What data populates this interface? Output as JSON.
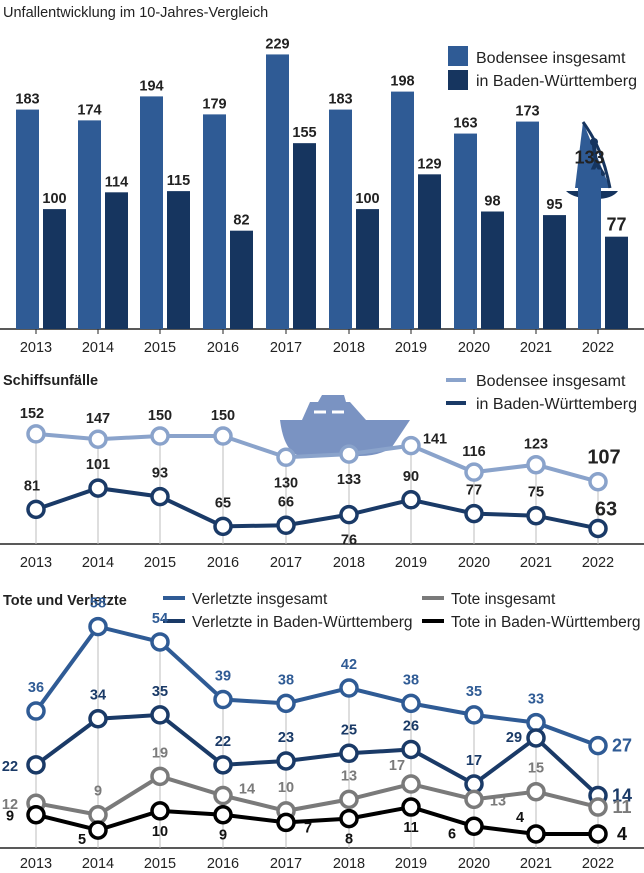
{
  "years": [
    "2013",
    "2014",
    "2015",
    "2016",
    "2017",
    "2018",
    "2019",
    "2020",
    "2021",
    "2022"
  ],
  "colors": {
    "bar_total": "#2f5b95",
    "bar_bw": "#16355f",
    "line_total": "#8aa3cb",
    "line_bw": "#1a3a67",
    "injured_total": "#2f5b95",
    "injured_bw": "#1a3a67",
    "dead_total": "#7a7a7a",
    "dead_bw": "#000000",
    "axis": "#222222",
    "grid": "#bdbdbd",
    "ship": "#7a93c2"
  },
  "chart_data": [
    {
      "type": "bar",
      "title": "Unfallentwicklung im 10-Jahres-Vergleich",
      "categories": [
        "2013",
        "2014",
        "2015",
        "2016",
        "2017",
        "2018",
        "2019",
        "2020",
        "2021",
        "2022"
      ],
      "series": [
        {
          "name": "Bodensee insgesamt",
          "values": [
            183,
            174,
            194,
            179,
            229,
            183,
            198,
            163,
            173,
            133
          ]
        },
        {
          "name": "in Baden-Württemberg",
          "values": [
            100,
            114,
            115,
            82,
            155,
            100,
            129,
            98,
            95,
            77
          ]
        }
      ],
      "ylim": [
        0,
        240
      ],
      "icon": "windsurfer-icon"
    },
    {
      "type": "line",
      "title": "Schiffsunfälle",
      "categories": [
        "2013",
        "2014",
        "2015",
        "2016",
        "2017",
        "2018",
        "2019",
        "2020",
        "2021",
        "2022"
      ],
      "series": [
        {
          "name": "Bodensee insgesamt",
          "values": [
            152,
            147,
            150,
            150,
            130,
            133,
            141,
            116,
            123,
            107
          ]
        },
        {
          "name": "in Baden-Württemberg",
          "values": [
            81,
            101,
            93,
            65,
            66,
            76,
            90,
            77,
            75,
            63
          ]
        }
      ],
      "icon": "motorboat-icon"
    },
    {
      "type": "line",
      "title": "Tote und Verletzte",
      "categories": [
        "2013",
        "2014",
        "2015",
        "2016",
        "2017",
        "2018",
        "2019",
        "2020",
        "2021",
        "2022"
      ],
      "series": [
        {
          "name": "Verletzte insgesamt",
          "values": [
            36,
            58,
            54,
            39,
            38,
            42,
            38,
            35,
            33,
            27
          ]
        },
        {
          "name": "Verletzte in Baden-Württemberg",
          "values": [
            22,
            34,
            35,
            22,
            23,
            25,
            26,
            17,
            29,
            14
          ]
        },
        {
          "name": "Tote insgesamt",
          "values": [
            12,
            9,
            19,
            14,
            10,
            13,
            17,
            13,
            15,
            11
          ]
        },
        {
          "name": "Tote in Baden-Württemberg",
          "values": [
            9,
            5,
            10,
            9,
            7,
            8,
            11,
            6,
            4,
            4
          ]
        }
      ]
    }
  ]
}
